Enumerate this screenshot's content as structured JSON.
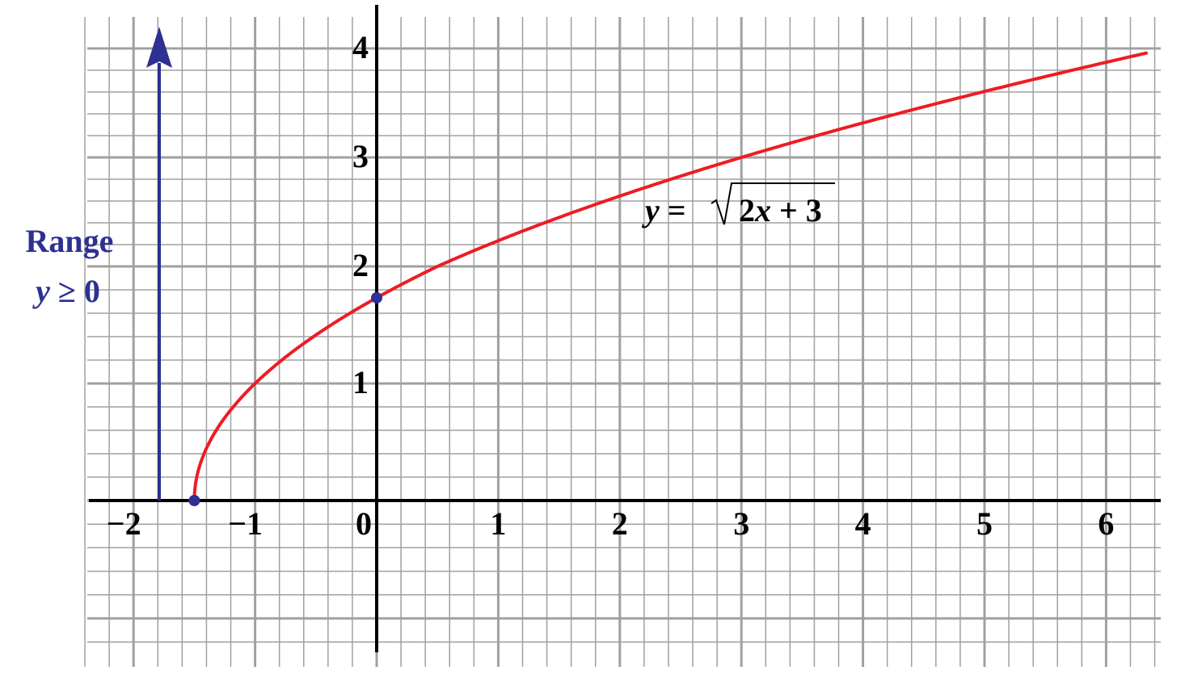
{
  "chart_data": {
    "type": "line",
    "title": "",
    "function_label": "y = √(2x + 3)",
    "function_label_parts": {
      "lhs": "y",
      "eq": "=",
      "radicand": "2x + 3"
    },
    "xlabel": "",
    "ylabel": "",
    "xlim": [
      -2.35,
      6.45
    ],
    "ylim": [
      -1.3,
      4.2
    ],
    "x_ticks": [
      -2,
      -1,
      0,
      1,
      2,
      3,
      4,
      5,
      6
    ],
    "x_tick_labels": [
      "−2",
      "−1",
      "0",
      "1",
      "2",
      "3",
      "4",
      "5",
      "6"
    ],
    "y_ticks": [
      1,
      2,
      3,
      4
    ],
    "y_tick_labels": [
      "1",
      "2",
      "3",
      "4"
    ],
    "grid": {
      "major": true,
      "minor": true,
      "minor_per_major": 5
    },
    "series": [
      {
        "name": "y = sqrt(2x + 3)",
        "color": "#ED1C24",
        "x": [
          -1.5,
          -1.45,
          -1.4,
          -1.3,
          -1.2,
          -1.0,
          -0.5,
          0,
          0.5,
          1,
          2,
          3,
          4,
          5,
          6,
          6.33
        ],
        "y": [
          0,
          0.316,
          0.447,
          0.632,
          0.775,
          1.0,
          1.414,
          1.732,
          2.0,
          2.236,
          2.646,
          3.0,
          3.317,
          3.606,
          3.873,
          3.99
        ]
      }
    ],
    "points": [
      {
        "label": "x-intercept endpoint",
        "x": -1.5,
        "y": 0,
        "color": "#2E3192"
      },
      {
        "label": "y-intercept",
        "x": 0,
        "y": 1.732,
        "color": "#2E3192"
      }
    ],
    "annotations": [
      {
        "text": "Range",
        "color": "#2E3192"
      },
      {
        "text": "y ≥ 0",
        "color": "#2E3192"
      },
      {
        "type": "arrow",
        "x": -1.8,
        "from_y": 0,
        "to_y": "up",
        "color": "#2E3192"
      }
    ]
  },
  "labels": {
    "range_title": "Range",
    "range_cond_var": "y",
    "range_cond_rest": " ≥ 0",
    "eq_lhs": "y",
    "eq_equals": " = ",
    "eq_radicand_pre": "2",
    "eq_radicand_var": "x",
    "eq_radicand_post": " + 3"
  },
  "colors": {
    "curve": "#ED1C24",
    "range": "#2E3192",
    "grid": "#A0A0A0",
    "axis": "#000000"
  }
}
